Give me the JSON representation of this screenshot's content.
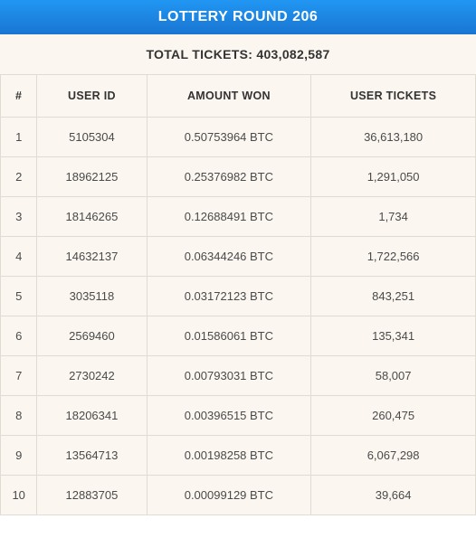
{
  "header": {
    "title": "LOTTERY ROUND 206"
  },
  "summary": {
    "total_label": "TOTAL TICKETS: 403,082,587"
  },
  "table": {
    "columns": {
      "rank": "#",
      "user_id": "USER ID",
      "amount_won": "AMOUNT WON",
      "user_tickets": "USER TICKETS"
    },
    "rows": [
      {
        "rank": "1",
        "user_id": "5105304",
        "amount_won": "0.50753964 BTC",
        "user_tickets": "36,613,180"
      },
      {
        "rank": "2",
        "user_id": "18962125",
        "amount_won": "0.25376982 BTC",
        "user_tickets": "1,291,050"
      },
      {
        "rank": "3",
        "user_id": "18146265",
        "amount_won": "0.12688491 BTC",
        "user_tickets": "1,734"
      },
      {
        "rank": "4",
        "user_id": "14632137",
        "amount_won": "0.06344246 BTC",
        "user_tickets": "1,722,566"
      },
      {
        "rank": "5",
        "user_id": "3035118",
        "amount_won": "0.03172123 BTC",
        "user_tickets": "843,251"
      },
      {
        "rank": "6",
        "user_id": "2569460",
        "amount_won": "0.01586061 BTC",
        "user_tickets": "135,341"
      },
      {
        "rank": "7",
        "user_id": "2730242",
        "amount_won": "0.00793031 BTC",
        "user_tickets": "58,007"
      },
      {
        "rank": "8",
        "user_id": "18206341",
        "amount_won": "0.00396515 BTC",
        "user_tickets": "260,475"
      },
      {
        "rank": "9",
        "user_id": "13564713",
        "amount_won": "0.00198258 BTC",
        "user_tickets": "6,067,298"
      },
      {
        "rank": "10",
        "user_id": "12883705",
        "amount_won": "0.00099129 BTC",
        "user_tickets": "39,664"
      }
    ]
  },
  "styling": {
    "header_gradient_top": "#2196f3",
    "header_gradient_bottom": "#1976d2",
    "header_text_color": "#ffffff",
    "body_background": "#fbf7f0",
    "border_color": "#e0dcd3",
    "text_color": "#4a4a4a",
    "header_font_size": 16,
    "summary_font_size": 14,
    "th_font_size": 12.5,
    "td_font_size": 13,
    "col_widths": {
      "rank": 40,
      "user_id": 120,
      "amount": 180,
      "tickets": 180
    }
  }
}
